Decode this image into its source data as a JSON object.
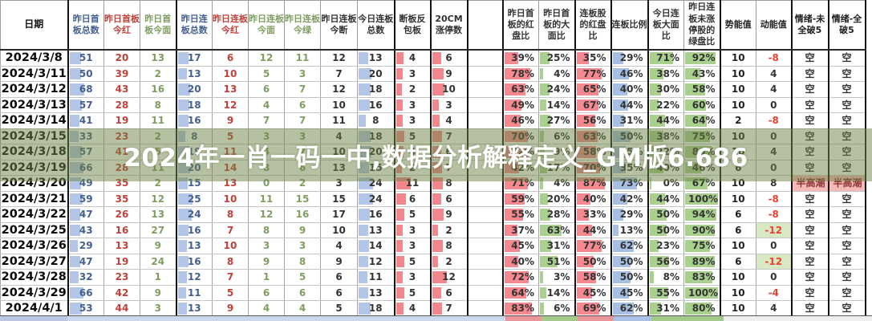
{
  "watermark": {
    "text": "2024年一肖一码一中,数据分析解释定义_GM版6.686"
  },
  "table": {
    "date_header": "日期",
    "columns": [
      {
        "key": "zr-sb-total",
        "label": "昨日首板总数",
        "type": "count",
        "color": "#44608f",
        "bar_color": "#b4c6e7",
        "bar_max": 68
      },
      {
        "key": "zr-sb-red",
        "label": "昨日首板今红",
        "type": "plain",
        "color": "#c0403a"
      },
      {
        "key": "zr-sb-mian",
        "label": "昨日首板今面",
        "type": "plain",
        "color": "#7f9e62"
      },
      {
        "key": "zr-lb-total",
        "label": "昨日连板总数",
        "type": "count",
        "color": "#44608f",
        "bar_color": "#b4c6e7",
        "bar_max": 25
      },
      {
        "key": "zr-lb-red",
        "label": "昨日连板今红",
        "type": "plain",
        "color": "#c0403a"
      },
      {
        "key": "zr-lb-mian",
        "label": "昨日连板今面",
        "type": "plain",
        "color": "#7f9e62"
      },
      {
        "key": "zr-lb-green",
        "label": "昨日连板今绿",
        "type": "plain",
        "color": "#7f9e62"
      },
      {
        "key": "zr-lb-duan",
        "label": "昨日连板今断",
        "type": "plain",
        "color": "#333333"
      },
      {
        "key": "jr-lb-total",
        "label": "今日连板总数",
        "type": "count",
        "color": "#333333",
        "bar_color": "#b4c6e7",
        "bar_max": 24
      },
      {
        "key": "duan-fanbao",
        "label": "断板反包板",
        "type": "count",
        "color": "#333333",
        "bar_color": "#f2868d",
        "bar_max": 11
      },
      {
        "key": "cm20",
        "label": "20CM涨停数",
        "type": "count",
        "color": "#333333",
        "bar_color": "#f2868d",
        "bar_max": 12
      },
      {
        "key": "spacer",
        "label": "",
        "type": "spacer",
        "color": "#333333"
      },
      {
        "key": "sb-red-pct",
        "label": "昨日首板的红盘比",
        "type": "pct",
        "color": "#333333",
        "bar_color": "#f5898f"
      },
      {
        "key": "sb-damian-pct",
        "label": "昨日首板的大面比",
        "type": "pct",
        "color": "#333333",
        "bar_color": "#a9d08e"
      },
      {
        "key": "lb-red-pct",
        "label": "连板股的红盘比",
        "type": "pct",
        "color": "#333333",
        "bar_color": "#f5898f"
      },
      {
        "key": "lb-ratio",
        "label": "连板比例",
        "type": "pct",
        "color": "#333333",
        "bar_color": "#a6bfe3"
      },
      {
        "key": "jr-lb-damian-pct",
        "label": "今日连板大面比",
        "type": "pct",
        "color": "#333333",
        "bar_color": "#a9d08e"
      },
      {
        "key": "lb-green-pct",
        "label": "昨日连板未涨停股的绿盘比",
        "type": "pct",
        "color": "#333333",
        "bar_color": "#a9d08e"
      },
      {
        "key": "shineng",
        "label": "势能值",
        "type": "plain",
        "color": "#222222"
      },
      {
        "key": "dongneng",
        "label": "动能值",
        "type": "signed",
        "color": "#222222"
      },
      {
        "key": "qingxu-wei",
        "label": "情绪-未全破5",
        "type": "mood",
        "color": "#222222"
      },
      {
        "key": "qingxu-quan",
        "label": "情绪-全破5",
        "type": "mood",
        "color": "#222222"
      }
    ],
    "rows": [
      {
        "date": "2024/3/8",
        "values": [
          "51",
          "20",
          "13",
          "17",
          "6",
          "12",
          "11",
          "12",
          "13",
          "4",
          "6",
          "",
          "39%",
          "25%",
          "35%",
          "29%",
          "71%",
          "92%",
          "10",
          "-8",
          "空",
          "空"
        ]
      },
      {
        "date": "2024/3/11",
        "values": [
          "50",
          "39",
          "2",
          "13",
          "10",
          "5",
          "3",
          "7",
          "20",
          "3",
          "9",
          "",
          "78%",
          "4%",
          "77%",
          "46%",
          "38%",
          "43%",
          "10",
          "4",
          "空",
          "空"
        ]
      },
      {
        "date": "2024/3/12",
        "values": [
          "68",
          "43",
          "16",
          "20",
          "13",
          "6",
          "7",
          "12",
          "18",
          "2",
          "10",
          "",
          "63%",
          "24%",
          "65%",
          "40%",
          "30%",
          "58%",
          "10",
          "4",
          "空",
          "空"
        ]
      },
      {
        "date": "2024/3/13",
        "values": [
          "57",
          "28",
          "8",
          "18",
          "12",
          "4",
          "6",
          "10",
          "16",
          "3",
          "3",
          "",
          "49%",
          "14%",
          "67%",
          "44%",
          "22%",
          "60%",
          "10",
          "0",
          "空",
          "空"
        ]
      },
      {
        "date": "2024/3/14",
        "values": [
          "41",
          "19",
          "11",
          "16",
          "9",
          "7",
          "7",
          "11",
          "8",
          "3",
          "4",
          "",
          "46%",
          "27%",
          "56%",
          "31%",
          "44%",
          "64%",
          "2",
          "-8",
          "空",
          "空"
        ]
      },
      {
        "date": "2024/3/15",
        "values": [
          "33",
          "23",
          "2",
          "8",
          "5",
          "3",
          "3",
          "4",
          "18",
          "5",
          "7",
          "",
          "70%",
          "6%",
          "63%",
          "50%",
          "38%",
          "75%",
          "10",
          "0",
          "空",
          "空"
        ]
      },
      {
        "date": "2024/3/18",
        "values": [
          "57",
          "41",
          "5",
          "19",
          "11",
          "4",
          "7",
          "10",
          "20",
          "4",
          "6",
          "",
          "72%",
          "9%",
          "58%",
          "35%",
          "22%",
          "80%",
          "10",
          "4",
          "空",
          "空"
        ]
      },
      {
        "date": "2024/3/19",
        "values": [
          "66",
          "28",
          "11",
          "20",
          "14",
          "8",
          "6",
          "13",
          "15",
          "2",
          "7",
          "",
          "42%",
          "17%",
          "70%",
          "35%",
          "40%",
          "46%",
          "6",
          "0",
          "空",
          "空"
        ]
      },
      {
        "date": "2024/3/20",
        "values": [
          "49",
          "35",
          "2",
          "15",
          "13",
          "0",
          "2",
          "3",
          "24",
          "11",
          "8",
          "",
          "71%",
          "4%",
          "87%",
          "73%",
          "0%",
          "67%",
          "10",
          "8",
          "半高潮",
          "半高潮"
        ]
      },
      {
        "date": "2024/3/21",
        "values": [
          "59",
          "35",
          "12",
          "25",
          "10",
          "11",
          "15",
          "15",
          "24",
          "6",
          "6",
          "",
          "59%",
          "20%",
          "40%",
          "42%",
          "44%",
          "100%",
          "10",
          "-8",
          "空",
          "空"
        ]
      },
      {
        "date": "2024/3/22",
        "values": [
          "47",
          "26",
          "13",
          "24",
          "8",
          "12",
          "16",
          "17",
          "16",
          "5",
          "9",
          "",
          "55%",
          "28%",
          "33%",
          "29%",
          "50%",
          "94%",
          "6",
          "-8",
          "空",
          "空"
        ]
      },
      {
        "date": "2024/3/25",
        "values": [
          "43",
          "16",
          "27",
          "16",
          "7",
          "8",
          "9",
          "10",
          "13",
          "3",
          "2",
          "",
          "37%",
          "63%",
          "44%",
          "13%",
          "50%",
          "90%",
          "6",
          "-12",
          "空",
          "空"
        ]
      },
      {
        "date": "2024/3/26",
        "values": [
          "29",
          "13",
          "9",
          "13",
          "10",
          "3",
          "3",
          "4",
          "14",
          "3",
          "8",
          "",
          "45%",
          "31%",
          "77%",
          "62%",
          "23%",
          "75%",
          "10",
          "0",
          "空",
          "空"
        ]
      },
      {
        "date": "2024/3/27",
        "values": [
          "47",
          "19",
          "24",
          "16",
          "8",
          "9",
          "8",
          "9",
          "12",
          "5",
          "2",
          "",
          "40%",
          "51%",
          "50%",
          "50%",
          "56%",
          "89%",
          "6",
          "-12",
          "空",
          "空"
        ]
      },
      {
        "date": "2024/3/28",
        "values": [
          "32",
          "23",
          "1",
          "12",
          "7",
          "1",
          "5",
          "6",
          "11",
          "3",
          "12",
          "",
          "72%",
          "3%",
          "58%",
          "50%",
          "8%",
          "83%",
          "10",
          "0",
          "空",
          "空"
        ]
      },
      {
        "date": "2024/3/29",
        "values": [
          "66",
          "42",
          "9",
          "11",
          "5",
          "6",
          "6",
          "6",
          "13",
          "5",
          "6",
          "",
          "64%",
          "14%",
          "45%",
          "45%",
          "55%",
          "100%",
          "10",
          "-4",
          "空",
          "空"
        ]
      },
      {
        "date": "2024/4/1",
        "values": [
          "53",
          "44",
          "3",
          "13",
          "9",
          "4",
          "4",
          "5",
          "18",
          "4",
          "7",
          "",
          "83%",
          "6%",
          "69%",
          "62%",
          "31%",
          "80%",
          "10",
          "4",
          "空",
          "空"
        ]
      }
    ]
  }
}
